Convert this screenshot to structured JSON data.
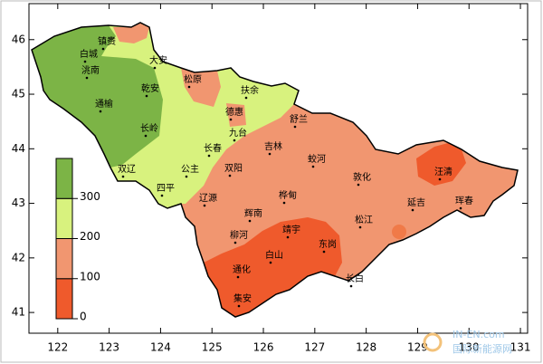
{
  "map": {
    "xlim": [
      121.44,
      131.14
    ],
    "ylim": [
      40.62,
      46.66
    ],
    "xticks": [
      122,
      123,
      124,
      125,
      126,
      127,
      128,
      129,
      130,
      131
    ],
    "yticks": [
      41,
      42,
      43,
      44,
      45,
      46
    ],
    "legend": {
      "levels": [
        0,
        100,
        200,
        300
      ],
      "lim": [
        0,
        400
      ],
      "colors": [
        "#ef5a2c",
        "#f19670",
        "#d8f27e",
        "#7cb446"
      ]
    },
    "cities": [
      "镇赉",
      "白城",
      "大安",
      "洮南",
      "乾安",
      "松原",
      "扶余",
      "通榆",
      "德惠",
      "舒兰",
      "长岭",
      "九台",
      "吉林",
      "长春",
      "蛟河",
      "双辽",
      "公主",
      "双阳",
      "敦化",
      "汪清",
      "四平",
      "辽源",
      "桦甸",
      "延吉",
      "珲春",
      "辉南",
      "松江",
      "柳河",
      "靖宇",
      "东岗",
      "白山",
      "通化",
      "长白",
      "集安"
    ],
    "watermark": [
      "IN-EN.com",
      "国际新能源网"
    ]
  }
}
